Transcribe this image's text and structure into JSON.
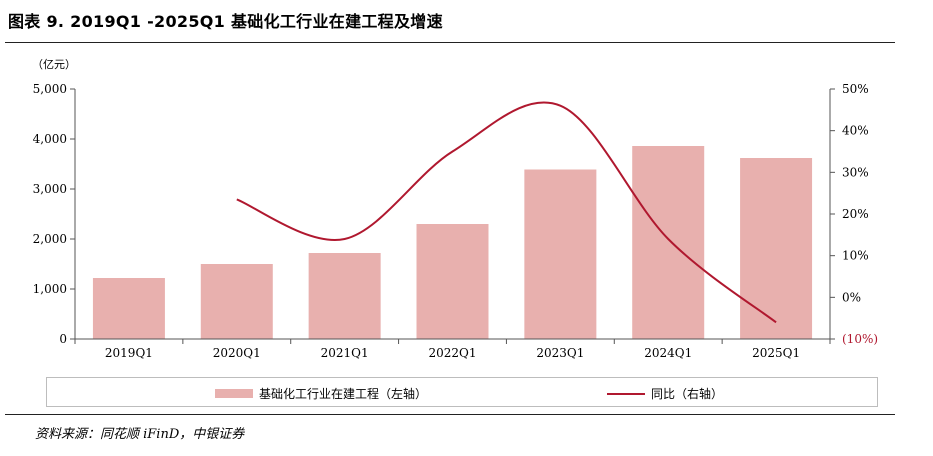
{
  "title": "图表 9. 2019Q1 -2025Q1 基础化工行业在建工程及增速",
  "source": "资料来源：同花顺 iFinD，中银证券",
  "colors": {
    "bar": "#E8B0AE",
    "line": "#B0182F",
    "negative_tick": "#B0182F"
  },
  "chart_data": {
    "type": "bar",
    "title": "",
    "y_unit": "（亿元）",
    "categories": [
      "2019Q1",
      "2020Q1",
      "2021Q1",
      "2022Q1",
      "2023Q1",
      "2024Q1",
      "2025Q1"
    ],
    "series": [
      {
        "name": "基础化工行业在建工程（左轴）",
        "type": "bar",
        "axis": "left",
        "values": [
          1220,
          1500,
          1720,
          2300,
          3390,
          3860,
          3620
        ]
      },
      {
        "name": "同比（右轴）",
        "type": "line",
        "axis": "right",
        "smooth": true,
        "values": [
          null,
          23.5,
          14,
          35,
          46,
          14,
          -6
        ]
      }
    ],
    "y_left": {
      "min": 0,
      "max": 5000,
      "ticks": [
        0,
        1000,
        2000,
        3000,
        4000,
        5000
      ],
      "tick_labels": [
        "0",
        "1,000",
        "2,000",
        "3,000",
        "4,000",
        "5,000"
      ]
    },
    "y_right": {
      "min": -10,
      "max": 50,
      "ticks": [
        -10,
        0,
        10,
        20,
        30,
        40,
        50
      ],
      "tick_labels": [
        "(10%)",
        "0%",
        "10%",
        "20%",
        "30%",
        "40%",
        "50%"
      ]
    },
    "grid": false,
    "legend_position": "bottom"
  }
}
